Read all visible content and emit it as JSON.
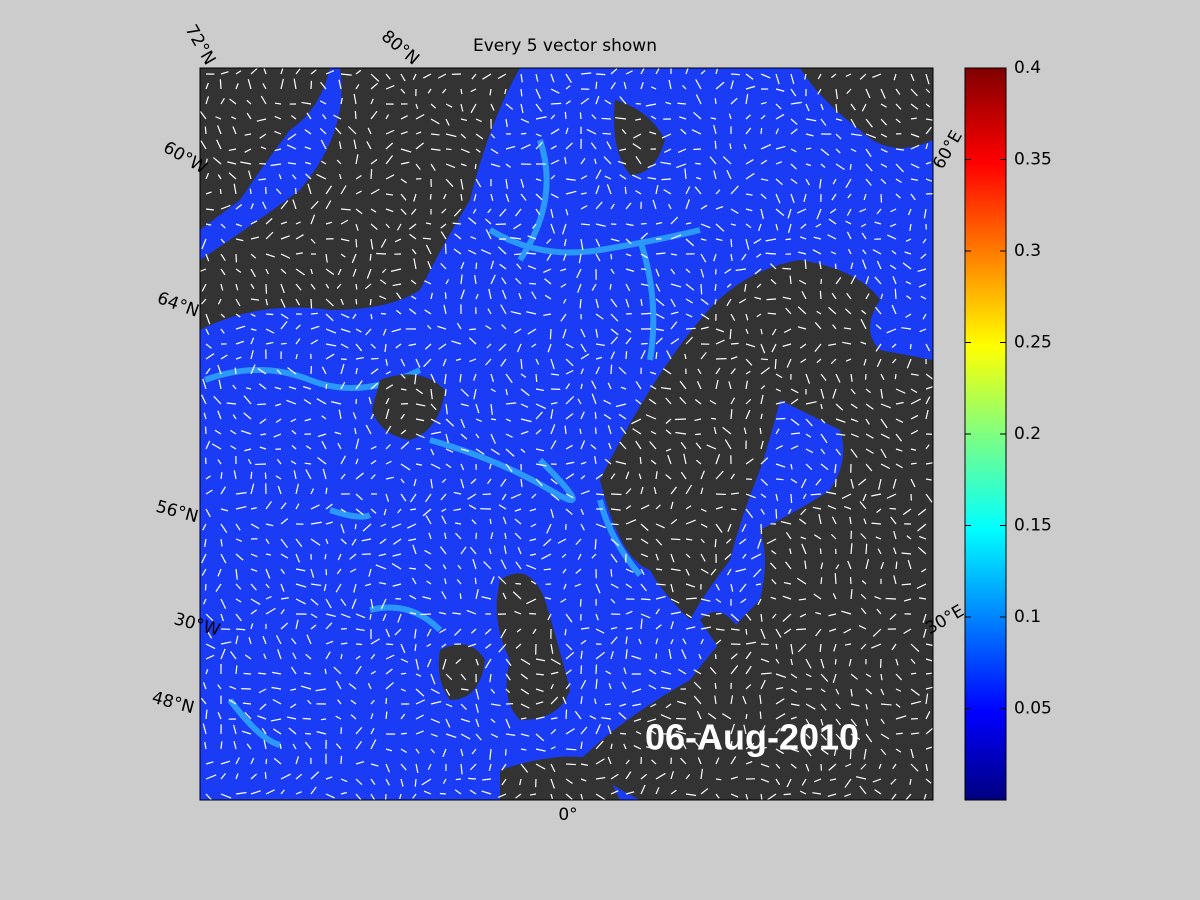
{
  "title": "Every 5 vector shown",
  "date_label": "06-Aug-2010",
  "grid_labels": [
    "72°N",
    "80°N",
    "60°W",
    "64°N",
    "56°N",
    "30°W",
    "48°N",
    "60°E",
    "30°E",
    "0°"
  ],
  "colorbar": {
    "lim": [
      0,
      0.4
    ],
    "ticks": [
      0.05,
      0.1,
      0.15,
      0.2,
      0.25,
      0.3,
      0.35,
      0.4
    ]
  }
}
